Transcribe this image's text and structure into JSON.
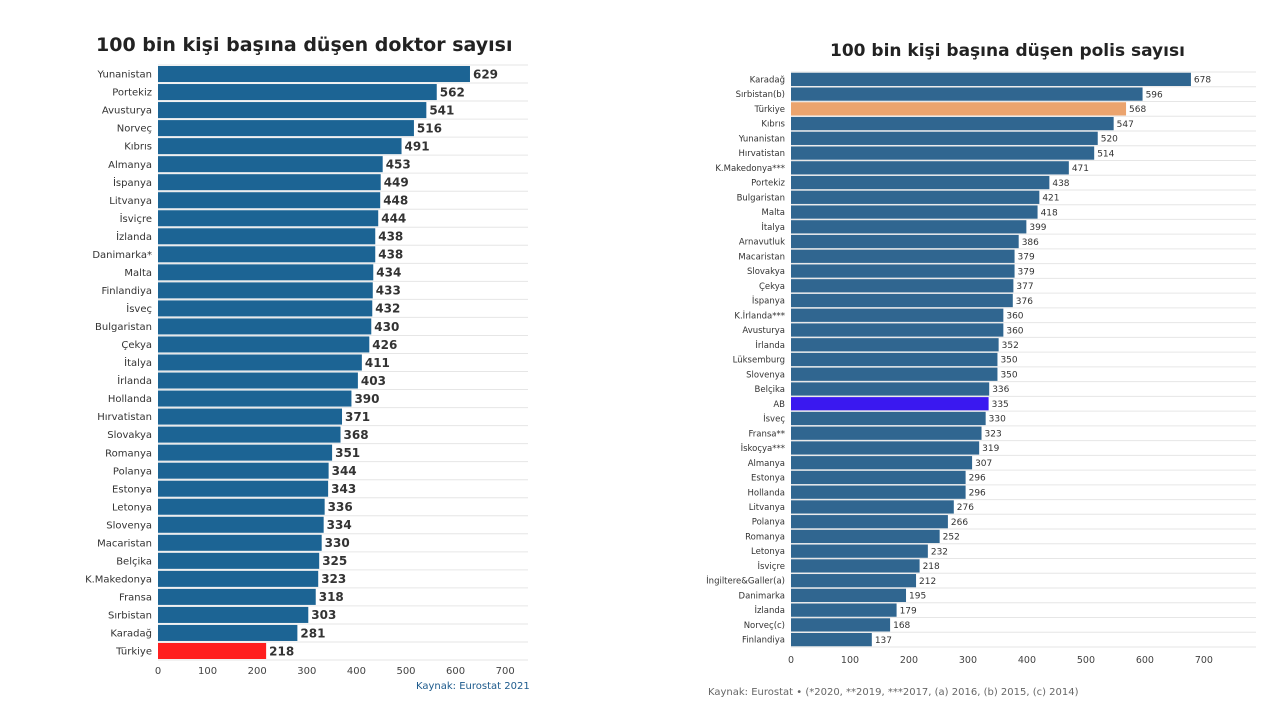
{
  "chart_data": [
    {
      "type": "bar",
      "orientation": "horizontal",
      "title": "100 bin kişi başına düşen doktor sayısı",
      "source": "Kaynak: Eurostat 2021",
      "categories": [
        "Yunanistan",
        "Portekiz",
        "Avusturya",
        "Norveç",
        "Kıbrıs",
        "Almanya",
        "İspanya",
        "Litvanya",
        "İsviçre",
        "İzlanda",
        "Danimarka*",
        "Malta",
        "Finlandiya",
        "İsveç",
        "Bulgaristan",
        "Çekya",
        "İtalya",
        "İrlanda",
        "Hollanda",
        "Hırvatistan",
        "Slovakya",
        "Romanya",
        "Polanya",
        "Estonya",
        "Letonya",
        "Slovenya",
        "Macaristan",
        "Belçika",
        "K.Makedonya",
        "Fransa",
        "Sırbistan",
        "Karadağ",
        "Türkiye"
      ],
      "values": [
        629,
        562,
        541,
        516,
        491,
        453,
        449,
        448,
        444,
        438,
        438,
        434,
        433,
        432,
        430,
        426,
        411,
        403,
        390,
        371,
        368,
        351,
        344,
        343,
        336,
        334,
        330,
        325,
        323,
        318,
        303,
        281,
        218
      ],
      "highlight": {
        "Türkiye": "#ff1f1f"
      },
      "bar_color": "#1c6494",
      "xlim": [
        0,
        750
      ],
      "xticks": [
        0,
        100,
        200,
        300,
        400,
        500,
        600,
        700
      ],
      "grid": true
    },
    {
      "type": "bar",
      "orientation": "horizontal",
      "title": "100 bin kişi başına düşen polis sayısı",
      "source": "Kaynak: Eurostat • (*2020, **2019, ***2017, (a) 2016, (b) 2015, (c) 2014)",
      "categories": [
        "Karadağ",
        "Sırbistan(b)",
        "Türkiye",
        "Kıbrıs",
        "Yunanistan",
        "Hırvatistan",
        "K.Makedonya***",
        "Portekiz",
        "Bulgaristan",
        "Malta",
        "İtalya",
        "Arnavutluk",
        "Macaristan",
        "Slovakya",
        "Çekya",
        "İspanya",
        "K.İrlanda***",
        "Avusturya",
        "İrlanda",
        "Lüksemburg",
        "Slovenya",
        "Belçika",
        "AB",
        "İsveç",
        "Fransa**",
        "İskoçya***",
        "Almanya",
        "Estonya",
        "Hollanda",
        "Litvanya",
        "Polanya",
        "Romanya",
        "Letonya",
        "İsviçre",
        "İngiltere&Galler(a)",
        "Danimarka",
        "İzlanda",
        "Norveç(c)",
        "Finlandiya"
      ],
      "values": [
        678,
        596,
        568,
        547,
        520,
        514,
        471,
        438,
        421,
        418,
        399,
        386,
        379,
        379,
        377,
        376,
        360,
        360,
        352,
        350,
        350,
        336,
        335,
        330,
        323,
        319,
        307,
        296,
        296,
        276,
        266,
        252,
        232,
        218,
        212,
        195,
        179,
        168,
        137
      ],
      "highlight": {
        "Türkiye": "#eba46e",
        "AB": "#3a18f0"
      },
      "bar_color": "#306690",
      "xlim": [
        0,
        790
      ],
      "xticks": [
        0,
        100,
        200,
        300,
        400,
        500,
        600,
        700
      ],
      "grid": true
    }
  ]
}
